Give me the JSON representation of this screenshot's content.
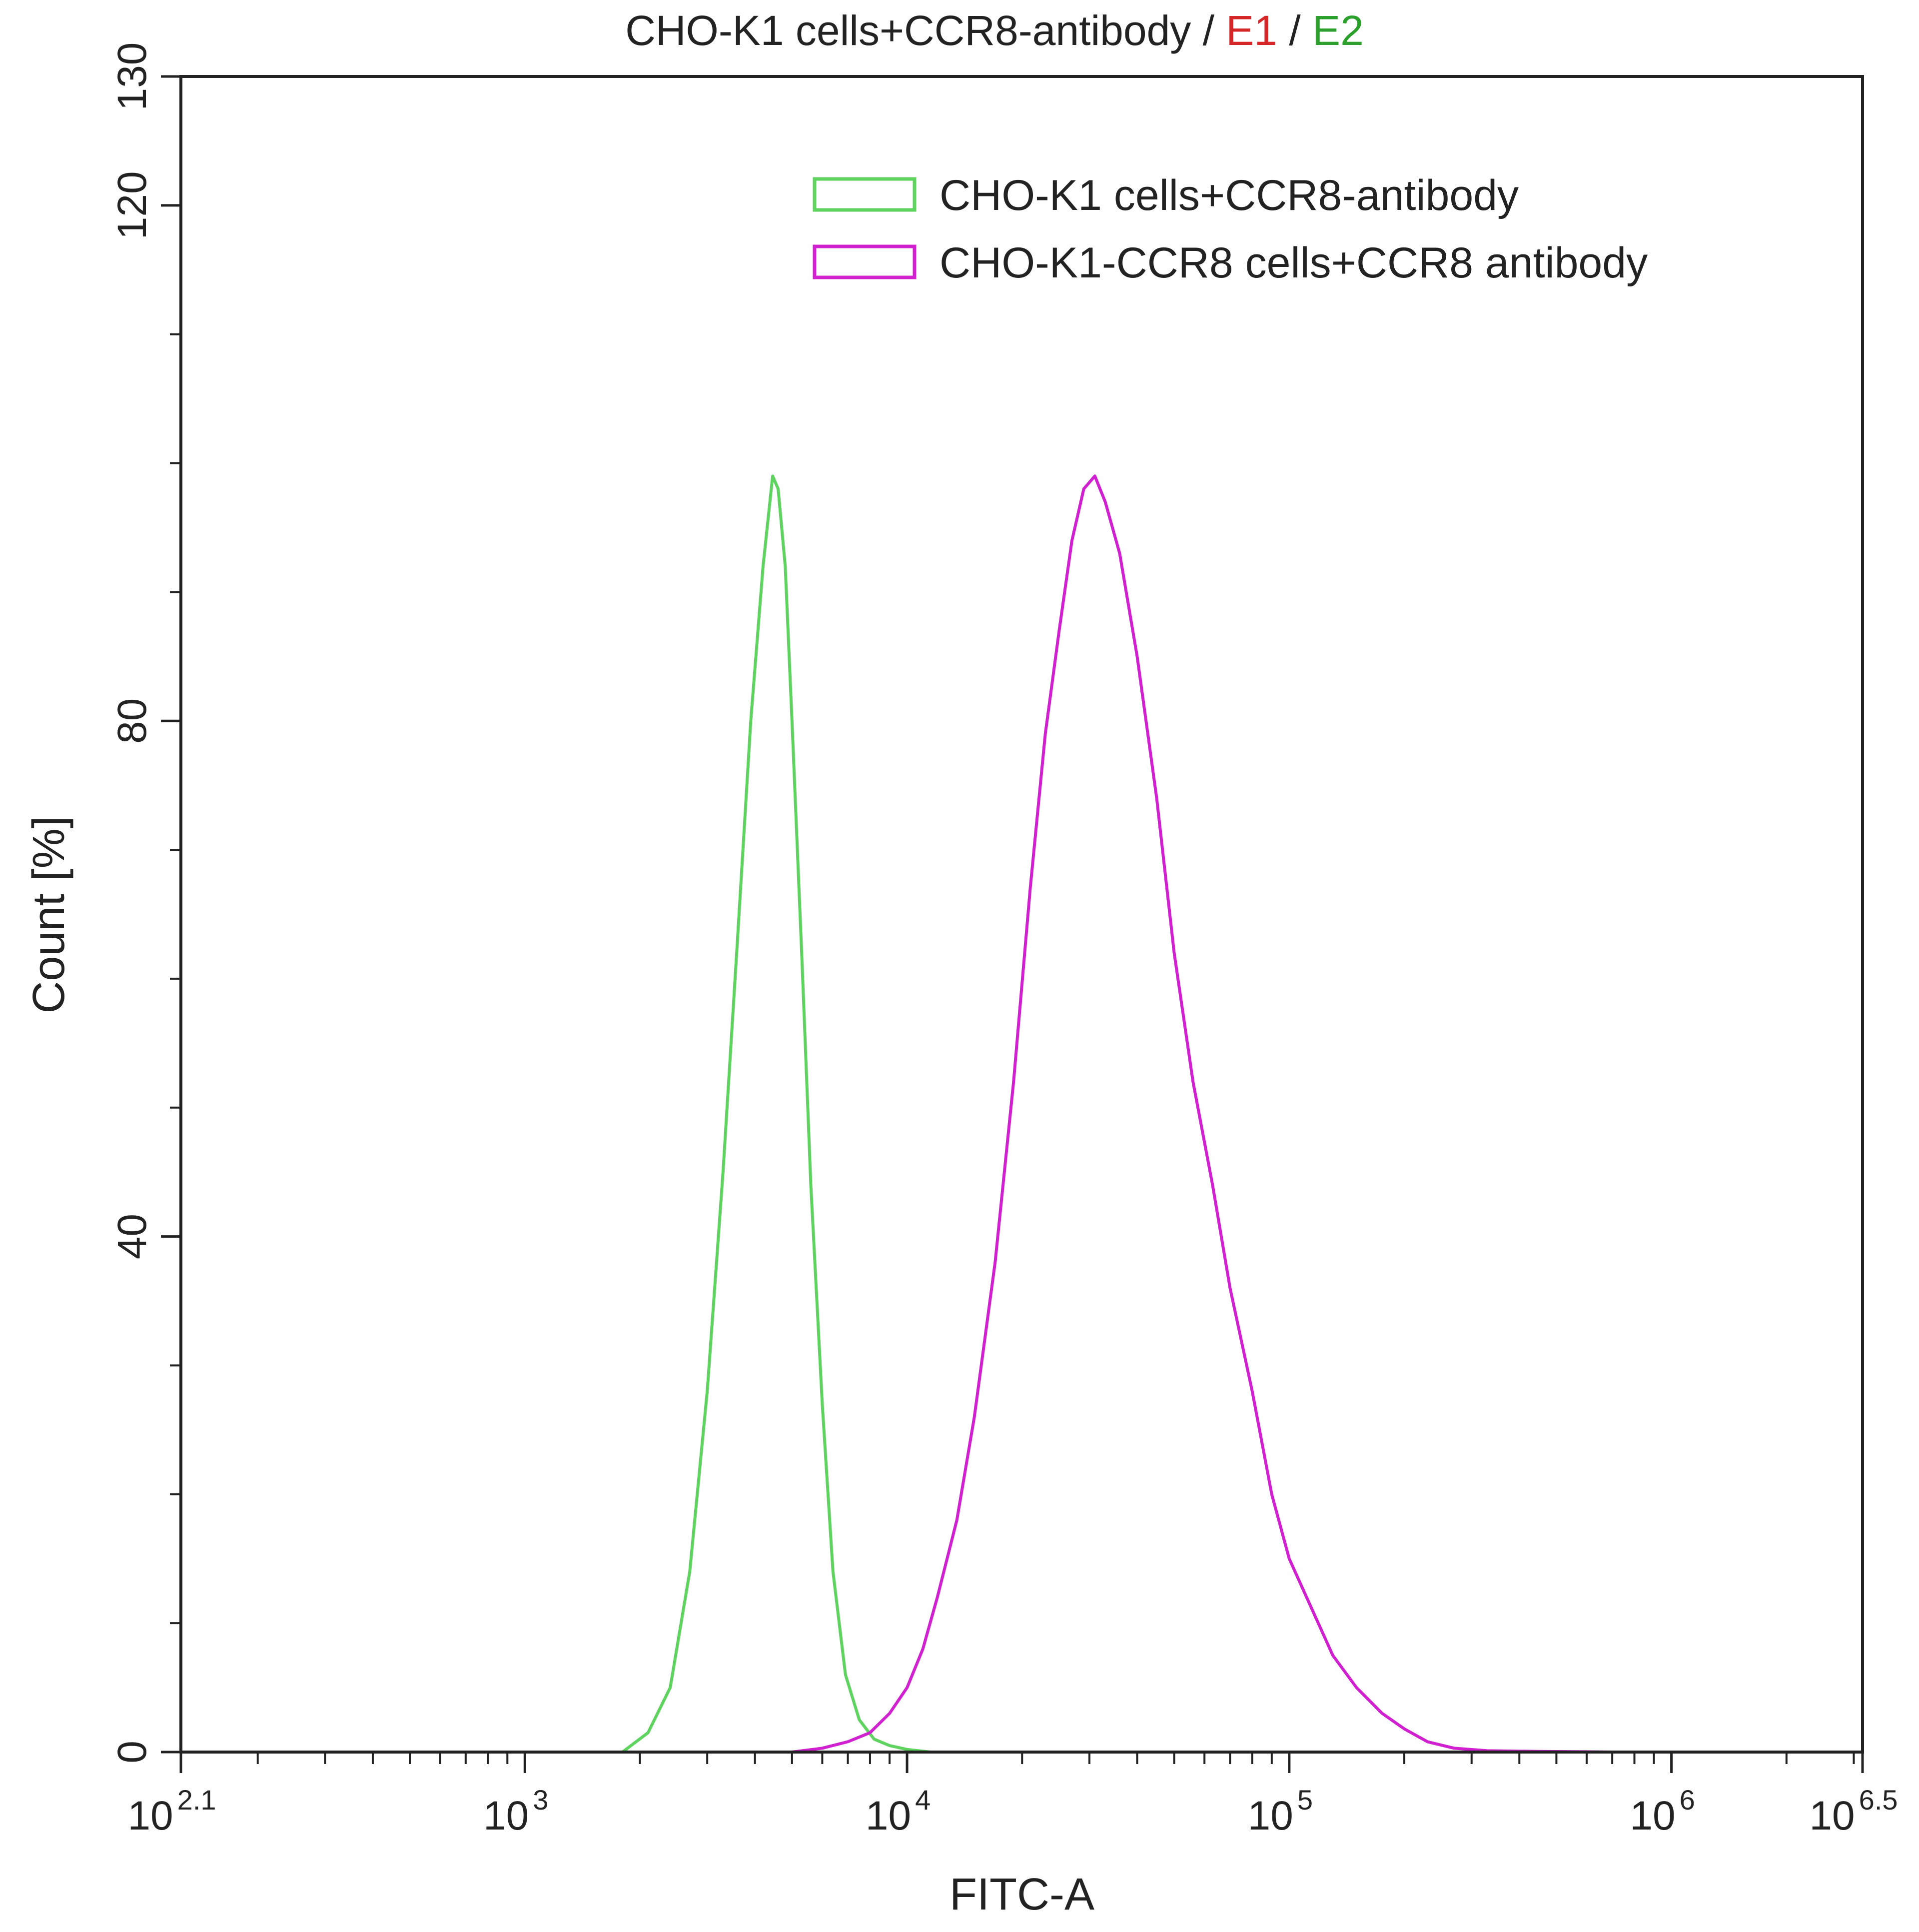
{
  "chart_data": {
    "type": "line",
    "title_parts": [
      {
        "text": "CHO-K1 cells+CCR8-antibody",
        "color": "#222222"
      },
      {
        "text": " / ",
        "color": "#222222"
      },
      {
        "text": "E1",
        "color": "#d62728"
      },
      {
        "text": " / ",
        "color": "#222222"
      },
      {
        "text": "E2",
        "color": "#2ca02c"
      }
    ],
    "xlabel": "FITC-A",
    "ylabel": "Count [%]",
    "x_scale": "log",
    "xlim": [
      125.9,
      3162278
    ],
    "ylim": [
      0,
      130
    ],
    "x_ticks": [
      {
        "base": "10",
        "exp": "2.1",
        "value": 125.9
      },
      {
        "base": "10",
        "exp": "3",
        "value": 1000
      },
      {
        "base": "10",
        "exp": "4",
        "value": 10000
      },
      {
        "base": "10",
        "exp": "5",
        "value": 100000
      },
      {
        "base": "10",
        "exp": "6",
        "value": 1000000
      },
      {
        "base": "10",
        "exp": "6.5",
        "value": 3162278
      }
    ],
    "y_ticks": [
      0,
      40,
      80,
      120,
      130
    ],
    "grid": false,
    "legend_position": "top-right",
    "series": [
      {
        "name": "CHO-K1 cells+CCR8-antibody",
        "color": "#5fd35f",
        "x": [
          1800,
          2100,
          2400,
          2700,
          3000,
          3300,
          3600,
          3900,
          4200,
          4450,
          4600,
          4800,
          5000,
          5300,
          5600,
          6000,
          6400,
          6900,
          7500,
          8200,
          9000,
          10000,
          11500
        ],
        "y": [
          0,
          1.5,
          5,
          14,
          28,
          45,
          63,
          80,
          92,
          99,
          98,
          92,
          80,
          62,
          44,
          27,
          14,
          6,
          2.5,
          1,
          0.5,
          0.2,
          0
        ]
      },
      {
        "name": "CHO-K1-CCR8 cells+CCR8 antibody",
        "color": "#d020d0",
        "x": [
          5000,
          6000,
          7000,
          8000,
          9000,
          10000,
          11000,
          12000,
          13500,
          15000,
          17000,
          19000,
          21000,
          23000,
          25000,
          27000,
          29000,
          31000,
          33000,
          36000,
          40000,
          45000,
          50000,
          56000,
          63000,
          70000,
          80000,
          90000,
          100000,
          115000,
          130000,
          150000,
          175000,
          200000,
          230000,
          270000,
          330000,
          450000,
          700000
        ],
        "y": [
          0,
          0.3,
          0.8,
          1.5,
          3,
          5,
          8,
          12,
          18,
          26,
          38,
          52,
          67,
          79,
          87,
          94,
          98,
          99,
          97,
          93,
          85,
          74,
          62,
          52,
          44,
          36,
          28,
          20,
          15,
          11,
          7.5,
          5,
          3,
          1.8,
          0.8,
          0.3,
          0.1,
          0.05,
          0
        ]
      }
    ]
  }
}
